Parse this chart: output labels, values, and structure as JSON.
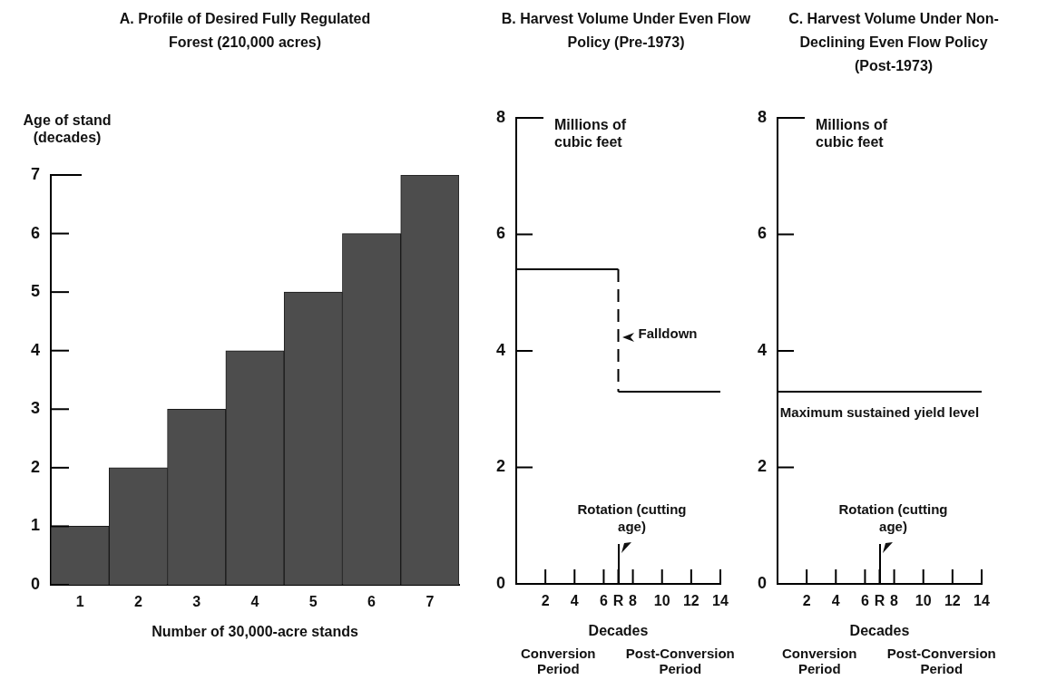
{
  "chart_data": [
    {
      "type": "bar",
      "title": "A. Profile of Desired Fully Regulated Forest (210,000 acres)",
      "xlabel": "Number of 30,000-acre stands",
      "ylabel": "Age of stand (decades)",
      "categories": [
        "1",
        "2",
        "3",
        "4",
        "5",
        "6",
        "7"
      ],
      "values": [
        1,
        2,
        3,
        4,
        5,
        6,
        7
      ],
      "color": "#4d4d4d",
      "ylim": [
        0,
        7
      ],
      "yticks": [
        0,
        1,
        2,
        3,
        4,
        5,
        6,
        7
      ]
    },
    {
      "type": "line",
      "title": "B. Harvest Volume Under Even Flow Policy (Pre-1973)",
      "xlabel": "Decades",
      "ylabel": "Millions of cubic feet",
      "series": [
        {
          "color": "#000000",
          "x": [
            0,
            7
          ],
          "values": [
            5.4,
            5.4
          ]
        },
        {
          "color": "#000000",
          "x": [
            7,
            7
          ],
          "values": [
            5.4,
            3.3
          ],
          "line_style": "dashed"
        },
        {
          "color": "#000000",
          "x": [
            7,
            14
          ],
          "values": [
            3.3,
            3.3
          ]
        }
      ],
      "xlim": [
        0,
        14
      ],
      "xticks": [
        2,
        4,
        6,
        {
          "value": 7,
          "label": "R"
        },
        8,
        10,
        12,
        14
      ],
      "ylim": [
        0,
        8
      ],
      "yticks": [
        0,
        2,
        4,
        6,
        8
      ],
      "annotations": [
        {
          "text": "Falldown",
          "x": 7,
          "y": 4.3
        },
        "Rotation (cutting age)",
        "Conversion Period",
        "Post-Conversion Period"
      ]
    },
    {
      "type": "line",
      "title": "C. Harvest Volume Under Non-Declining Even Flow Policy (Post-1973)",
      "xlabel": "Decades",
      "ylabel": "Millions of cubic feet",
      "series": [
        {
          "color": "#000000",
          "x": [
            0,
            14
          ],
          "values": [
            3.3,
            3.3
          ]
        }
      ],
      "xlim": [
        0,
        14
      ],
      "xticks": [
        2,
        4,
        6,
        {
          "value": 7,
          "label": "R"
        },
        8,
        10,
        12,
        14
      ],
      "ylim": [
        0,
        8
      ],
      "yticks": [
        0,
        2,
        4,
        6,
        8
      ],
      "annotations": [
        {
          "text": "Maximum sustained yield level",
          "x": 7,
          "y": 3.3
        },
        "Rotation (cutting age)",
        "Conversion Period",
        "Post-Conversion Period"
      ]
    }
  ]
}
